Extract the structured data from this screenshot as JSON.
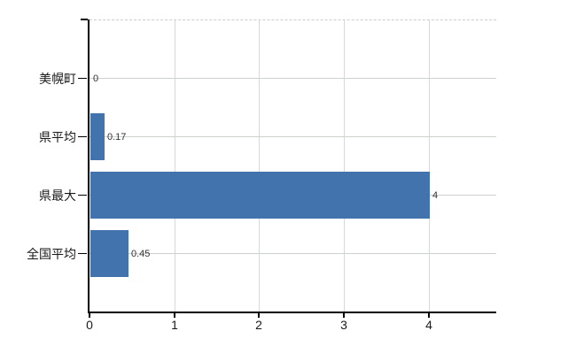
{
  "chart_data": {
    "type": "bar",
    "orientation": "horizontal",
    "categories": [
      "美幌町",
      "県平均",
      "県最大",
      "全国平均"
    ],
    "values": [
      0,
      0.17,
      4,
      0.45
    ],
    "value_labels": [
      "0",
      "0.17",
      "4",
      "0.45"
    ],
    "x_tick_labels": [
      "0",
      "1",
      "2",
      "3",
      "4"
    ],
    "x_tick_values": [
      0,
      1,
      2,
      3,
      4
    ],
    "xlim": [
      0,
      4.8
    ],
    "grid": true,
    "legend_position": "none",
    "colors": {
      "bar": "#4273ad",
      "axis": "#000000",
      "grid_vertical": "#d8d8d8",
      "grid_horizontal": "#ccd3cc",
      "plot_border_dashed": "#d2cad2",
      "category_label": "#1a1a1a",
      "tick_label": "#1a1a1a",
      "value_label": "#333333"
    }
  }
}
